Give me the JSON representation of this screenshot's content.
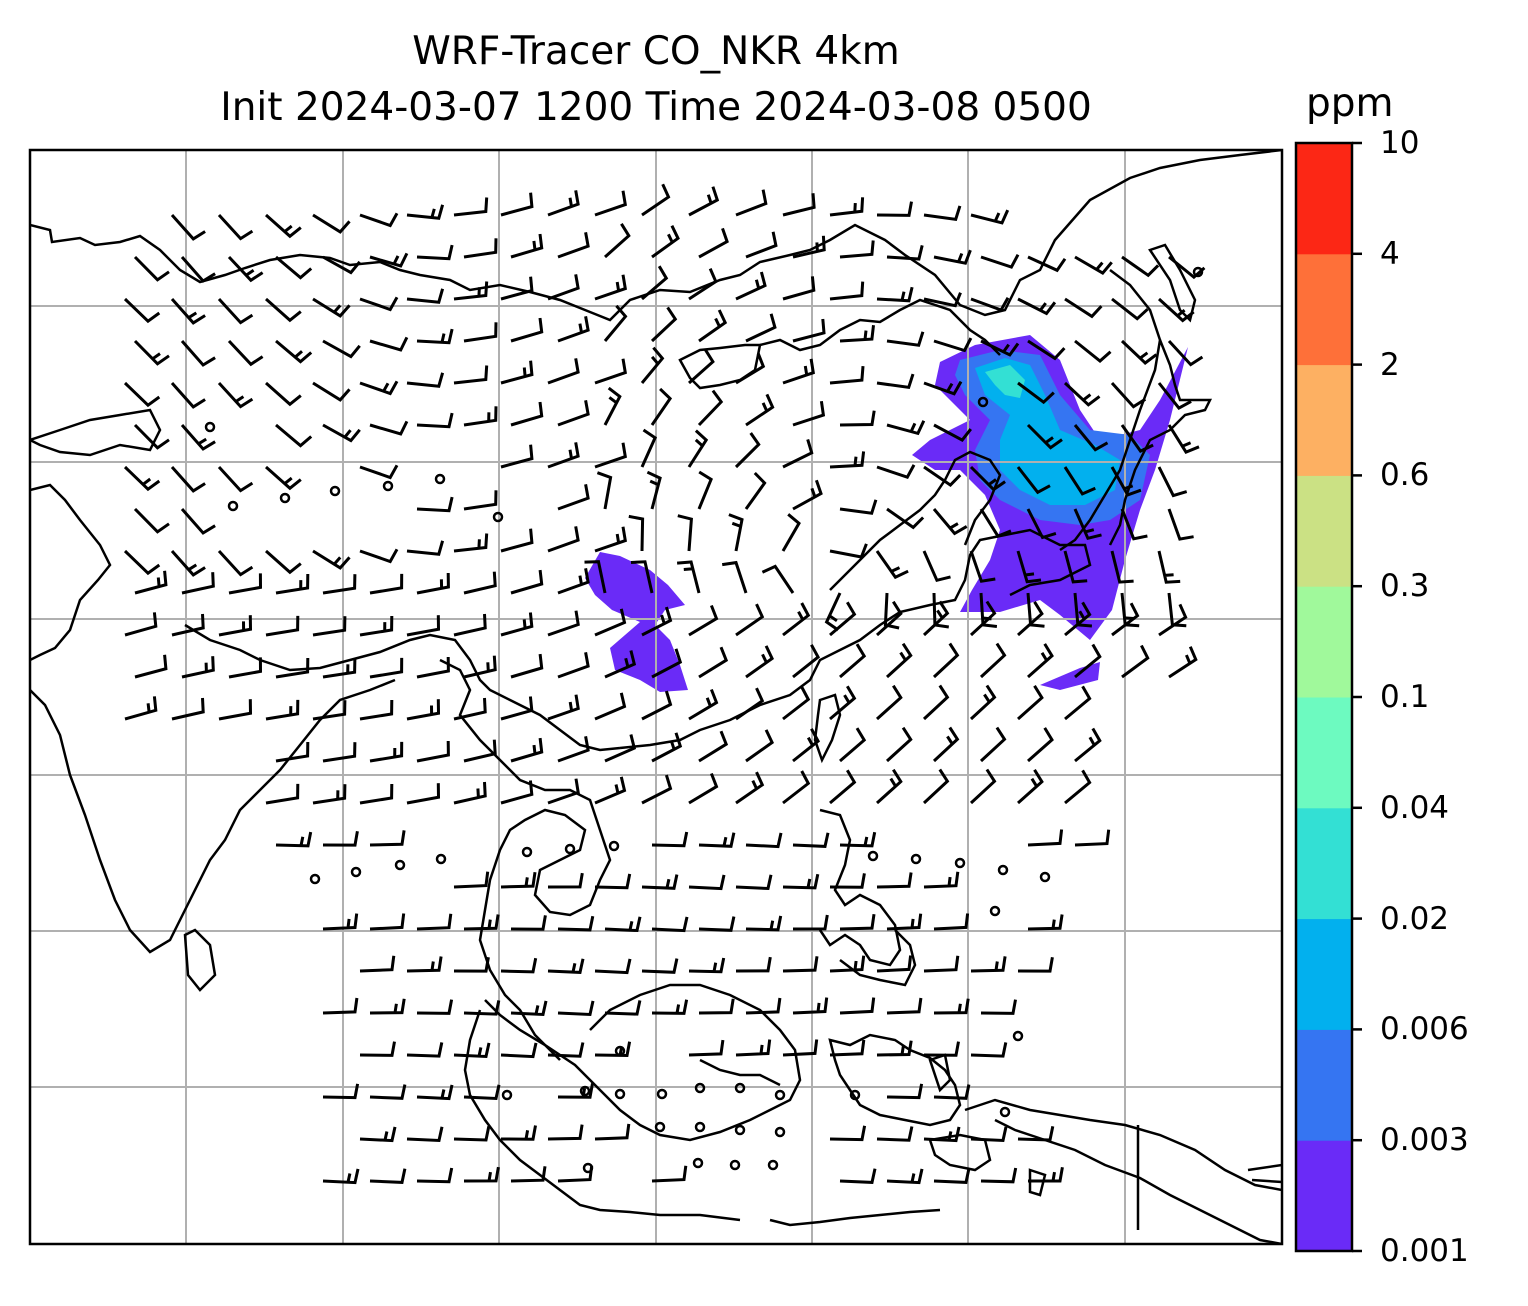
{
  "title": {
    "line1": "WRF-Tracer CO_NKR 4km",
    "line2": "Init 2024-03-07 1200 Time 2024-03-08 0500"
  },
  "colorbar": {
    "unit": "ppm",
    "levels": [
      "0.001",
      "0.003",
      "0.006",
      "0.02",
      "0.04",
      "0.1",
      "0.3",
      "0.6",
      "2",
      "4",
      "10"
    ],
    "colors": [
      "#6a2bf7",
      "#3575f2",
      "#02b0ee",
      "#33e0d4",
      "#6dfac0",
      "#a0f99b",
      "#cbe184",
      "#fdb062",
      "#fe7039",
      "#fc2715"
    ]
  },
  "map": {
    "gridlines": true,
    "tracer_plumes": [
      {
        "region": "northeast-china-korea",
        "level_colors": [
          "#6a2bf7",
          "#3575f2",
          "#02b0ee",
          "#33e0d4"
        ]
      },
      {
        "region": "southwest-china",
        "level_colors": [
          "#6a2bf7"
        ]
      }
    ],
    "wind_barbs": true,
    "calm_wind_circles": true
  }
}
